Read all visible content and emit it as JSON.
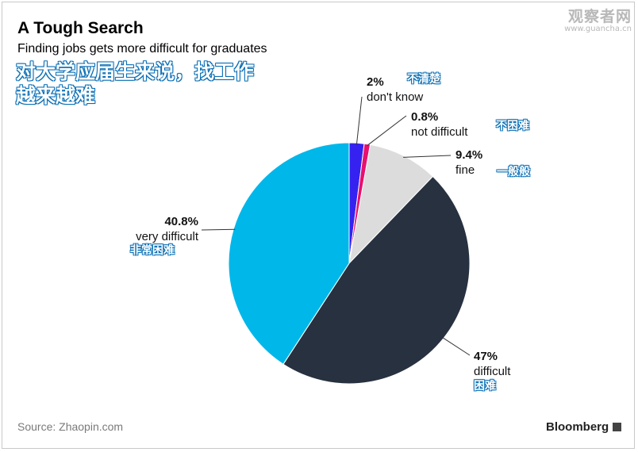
{
  "header": {
    "title": "A Tough Search",
    "subtitle": "Finding jobs gets more difficult for graduates",
    "cn_title_line1": "对大学应届生来说，找工作",
    "cn_title_line2": "越来越难"
  },
  "watermark": {
    "main": "观察者网",
    "url": "www.guancha.cn"
  },
  "footer": {
    "source": "Source: Zhaopin.com",
    "brand": "Bloomberg"
  },
  "chart_data": {
    "type": "pie",
    "slices": [
      {
        "pct_label": "2%",
        "label": "don't know",
        "cn_label": "不清楚",
        "value": 2.0,
        "color": "#3522f0"
      },
      {
        "pct_label": "0.8%",
        "label": "not difficult",
        "cn_label": "不困难",
        "value": 0.8,
        "color": "#e8106e"
      },
      {
        "pct_label": "9.4%",
        "label": "fine",
        "cn_label": "一般般",
        "value": 9.4,
        "color": "#dcdcdc"
      },
      {
        "pct_label": "47%",
        "label": "difficult",
        "cn_label": "困难",
        "value": 47.0,
        "color": "#27313f"
      },
      {
        "pct_label": "40.8%",
        "label": "very difficult",
        "cn_label": "非常困难",
        "value": 40.8,
        "color": "#00b7ea"
      }
    ]
  }
}
